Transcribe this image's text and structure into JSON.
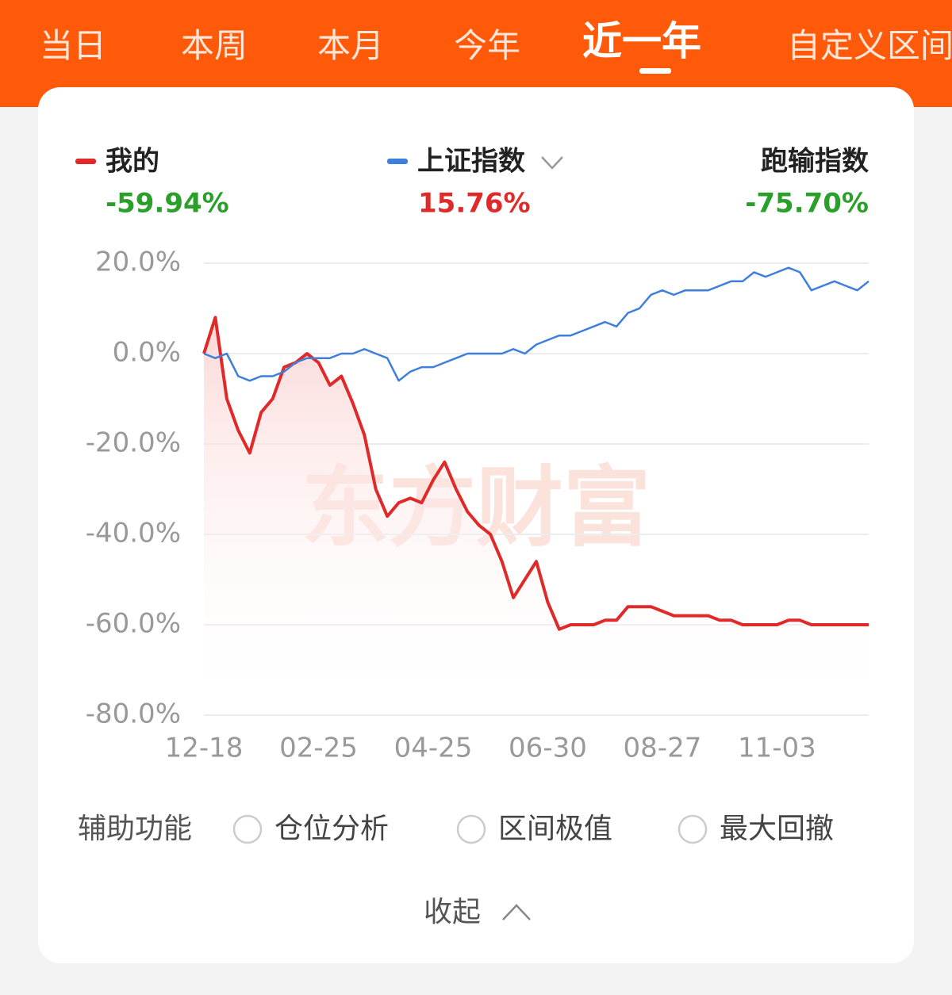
{
  "tabs": [
    "当日",
    "本周",
    "本月",
    "今年",
    "近一年",
    "自定义区间"
  ],
  "summary": {
    "mine": "-59.94%",
    "index": "15.76%",
    "gap_name": "跑输指数",
    "gap": "-75.70%"
  },
  "watermark": "东方财富",
  "chart_data": {
    "type": "line",
    "categories": [
      "12-18",
      null,
      null,
      null,
      null,
      null,
      null,
      null,
      null,
      null,
      "02-25",
      null,
      null,
      null,
      null,
      null,
      null,
      null,
      null,
      null,
      "04-25",
      null,
      null,
      null,
      null,
      null,
      null,
      null,
      null,
      null,
      "06-30",
      null,
      null,
      null,
      null,
      null,
      null,
      null,
      null,
      null,
      "08-27",
      null,
      null,
      null,
      null,
      null,
      null,
      null,
      null,
      null,
      "11-03",
      null,
      null,
      null,
      null,
      null,
      null,
      null,
      null
    ],
    "series": [
      {
        "name": "我的",
        "color": "#e02a2a",
        "values": [
          0,
          8,
          -10,
          -17,
          -22,
          -13,
          -10,
          -3,
          -2,
          0,
          -2,
          -7,
          -5,
          -11,
          -18,
          -30,
          -36,
          -33,
          -32,
          -33,
          -28,
          -24,
          -30,
          -35,
          -38,
          -40,
          -46,
          -54,
          -50,
          -46,
          -55,
          -61,
          -60,
          -60,
          -60,
          -59,
          -59,
          -56,
          -56,
          -56,
          -57,
          -58,
          -58,
          -58,
          -58,
          -59,
          -59,
          -60,
          -60,
          -60,
          -60,
          -59,
          -59,
          -60,
          -60,
          -60,
          -60,
          -60,
          -60
        ]
      },
      {
        "name": "上证指数",
        "color": "#3f7fdc",
        "values": [
          0,
          -1,
          0,
          -5,
          -6,
          -5,
          -5,
          -4,
          -2,
          -1,
          -1,
          -1,
          0,
          0,
          1,
          0,
          -1,
          -6,
          -4,
          -3,
          -3,
          -2,
          -1,
          0,
          0,
          0,
          0,
          1,
          0,
          2,
          3,
          4,
          4,
          5,
          6,
          7,
          6,
          9,
          10,
          13,
          14,
          13,
          14,
          14,
          14,
          15,
          16,
          16,
          18,
          17,
          18,
          19,
          18,
          14,
          15,
          16,
          15,
          14,
          16
        ]
      }
    ],
    "ylim": [
      -80,
      20
    ],
    "yticks": [
      {
        "value": -80,
        "label": "-80.0%"
      },
      {
        "value": -60,
        "label": "-60.0%"
      },
      {
        "value": -40,
        "label": "-40.0%"
      },
      {
        "value": -20,
        "label": "-20.0%"
      },
      {
        "value": 0,
        "label": "0.0%"
      },
      {
        "value": 20,
        "label": "20.0%"
      }
    ],
    "grid": true
  },
  "tools": {
    "label": "辅助功能",
    "options": [
      "仓位分析",
      "区间极值",
      "最大回撤"
    ]
  },
  "collapse": "收起"
}
